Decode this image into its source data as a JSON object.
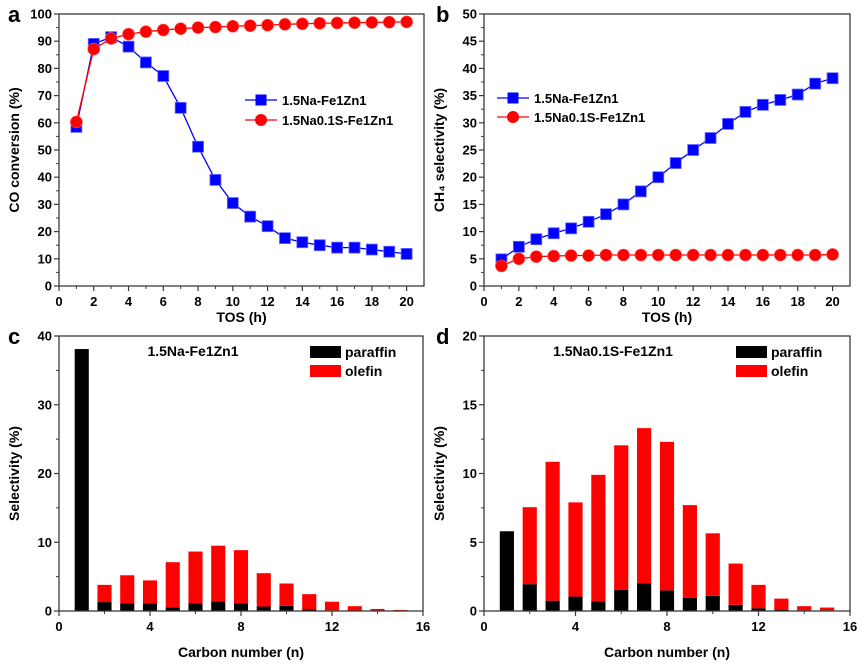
{
  "chart_data": [
    {
      "panel": "a",
      "type": "line",
      "xlabel": "TOS (h)",
      "ylabel": "CO conversion (%)",
      "xlim": [
        0,
        21
      ],
      "ylim": [
        0,
        100
      ],
      "xticks": [
        0,
        2,
        4,
        6,
        8,
        10,
        12,
        14,
        16,
        18,
        20
      ],
      "yticks": [
        0,
        10,
        20,
        30,
        40,
        50,
        60,
        70,
        80,
        90,
        100
      ],
      "legend_position": "center-right",
      "x": [
        1,
        2,
        3,
        4,
        5,
        6,
        7,
        8,
        9,
        10,
        11,
        12,
        13,
        14,
        15,
        16,
        17,
        18,
        19,
        20
      ],
      "series": [
        {
          "name": "1.5Na-Fe1Zn1",
          "color": "#0000ff",
          "marker": "square",
          "values": [
            58.5,
            89,
            91.5,
            88,
            82.2,
            77.2,
            65.5,
            51.2,
            39,
            30.5,
            25.5,
            22,
            17.6,
            16.1,
            15,
            14.1,
            14.1,
            13.4,
            12.6,
            11.8
          ]
        },
        {
          "name": "1.5Na0.1S-Fe1Zn1",
          "color": "#ff0000",
          "marker": "circle",
          "values": [
            60.3,
            87.1,
            91,
            92.6,
            93.5,
            94.1,
            94.6,
            95,
            95.2,
            95.5,
            95.7,
            95.9,
            96.2,
            96.4,
            96.6,
            96.7,
            96.8,
            96.9,
            97,
            97.1
          ]
        }
      ]
    },
    {
      "panel": "b",
      "type": "line",
      "xlabel": "TOS (h)",
      "ylabel": "CH₄ selectivity (%)",
      "xlim": [
        0,
        21
      ],
      "ylim": [
        0,
        50
      ],
      "xticks": [
        0,
        2,
        4,
        6,
        8,
        10,
        12,
        14,
        16,
        18,
        20
      ],
      "yticks": [
        0,
        5,
        10,
        15,
        20,
        25,
        30,
        35,
        40,
        45,
        50
      ],
      "legend_position": "center-left",
      "x": [
        1,
        2,
        3,
        4,
        5,
        6,
        7,
        8,
        9,
        10,
        11,
        12,
        13,
        14,
        15,
        16,
        17,
        18,
        19,
        20
      ],
      "series": [
        {
          "name": "1.5Na-Fe1Zn1",
          "color": "#0000ff",
          "marker": "square",
          "values": [
            4.9,
            7.2,
            8.6,
            9.7,
            10.6,
            11.8,
            13.2,
            15,
            17.4,
            20,
            22.6,
            25,
            27.2,
            29.8,
            32,
            33.3,
            34.2,
            35.2,
            37.2,
            38.2
          ]
        },
        {
          "name": "1.5Na0.1S-Fe1Zn1",
          "color": "#ff0000",
          "marker": "circle",
          "values": [
            3.7,
            5,
            5.4,
            5.5,
            5.6,
            5.6,
            5.7,
            5.7,
            5.7,
            5.7,
            5.7,
            5.7,
            5.7,
            5.7,
            5.7,
            5.7,
            5.7,
            5.7,
            5.7,
            5.8
          ]
        }
      ]
    },
    {
      "panel": "c",
      "type": "bar",
      "stacked": true,
      "title": "1.5Na-Fe1Zn1",
      "xlabel": "Carbon number (n)",
      "ylabel": "Selectivity (%)",
      "xlim": [
        0,
        16
      ],
      "ylim": [
        0,
        40
      ],
      "xticks": [
        0,
        4,
        8,
        12,
        16
      ],
      "yticks": [
        0,
        10,
        20,
        30,
        40
      ],
      "legend_position": "top-right",
      "categories": [
        1,
        2,
        3,
        4,
        5,
        6,
        7,
        8,
        9,
        10,
        11,
        12,
        13,
        14,
        15
      ],
      "series": [
        {
          "name": "paraffin",
          "color": "#000000",
          "values": [
            38.1,
            1.3,
            1.1,
            1.1,
            0.5,
            1.1,
            1.4,
            1.1,
            0.65,
            0.75,
            0.25,
            0.1,
            0.05,
            0.02,
            0.01
          ]
        },
        {
          "name": "olefin",
          "color": "#ff0000",
          "values": [
            0,
            2.5,
            4.1,
            3.35,
            6.6,
            7.55,
            8.1,
            7.75,
            4.85,
            3.25,
            2.2,
            1.25,
            0.65,
            0.28,
            0.14
          ]
        }
      ]
    },
    {
      "panel": "d",
      "type": "bar",
      "stacked": true,
      "title": "1.5Na0.1S-Fe1Zn1",
      "xlabel": "Carbon number (n)",
      "ylabel": "Selectivity (%)",
      "xlim": [
        0,
        16
      ],
      "ylim": [
        0,
        20
      ],
      "xticks": [
        0,
        4,
        8,
        12,
        16
      ],
      "yticks": [
        0,
        5,
        10,
        15,
        20
      ],
      "legend_position": "top-right",
      "categories": [
        1,
        2,
        3,
        4,
        5,
        6,
        7,
        8,
        9,
        10,
        11,
        12,
        13,
        14,
        15
      ],
      "series": [
        {
          "name": "paraffin",
          "color": "#000000",
          "values": [
            5.8,
            1.95,
            0.75,
            1.05,
            0.7,
            1.55,
            2.0,
            1.5,
            0.95,
            1.1,
            0.45,
            0.2,
            0.1,
            0.05,
            0.05
          ]
        },
        {
          "name": "olefin",
          "color": "#ff0000",
          "values": [
            0,
            5.6,
            10.1,
            6.85,
            9.2,
            10.5,
            11.3,
            10.8,
            6.75,
            4.55,
            3.0,
            1.7,
            0.8,
            0.3,
            0.2
          ]
        }
      ]
    }
  ]
}
